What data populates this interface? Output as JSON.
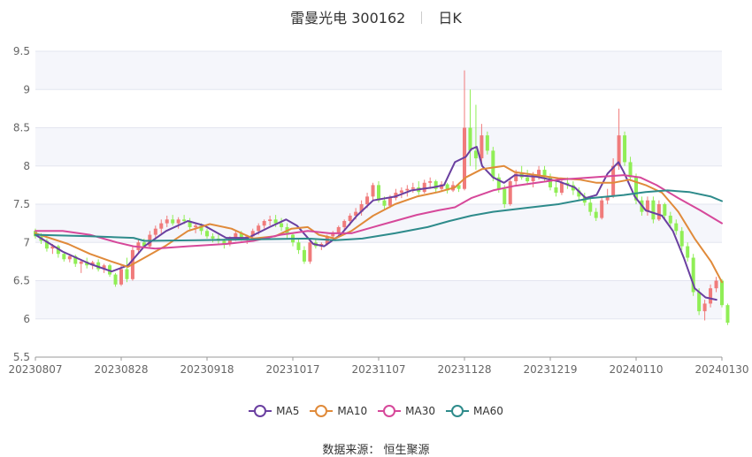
{
  "title": {
    "text": "雷曼光电 300162",
    "period": "日K"
  },
  "source_text": "数据来源： 恒生聚源",
  "colors": {
    "up": "#f07b7b",
    "down": "#90ee56"
  },
  "chart_data": {
    "type": "candlestick",
    "ylim": [
      5.5,
      9.5
    ],
    "yticks": [
      5.5,
      6,
      6.5,
      7,
      7.5,
      8,
      8.5,
      9,
      9.5
    ],
    "ytick_labels": [
      "5.5",
      "6",
      "6.5",
      "7",
      "7.5",
      "8",
      "8.5",
      "9",
      "9.5"
    ],
    "xtick_labels": [
      "20230807",
      "20230828",
      "20230918",
      "20231017",
      "20231107",
      "20231128",
      "20231219",
      "20240110",
      "20240130"
    ],
    "xtick_index": [
      0,
      15,
      30,
      45,
      60,
      75,
      90,
      105,
      120
    ],
    "num_bars": 121,
    "ohlc": [
      [
        7.15,
        7.18,
        7.05,
        7.08
      ],
      [
        7.08,
        7.12,
        6.98,
        7.02
      ],
      [
        7.02,
        7.05,
        6.88,
        6.92
      ],
      [
        6.92,
        6.98,
        6.85,
        6.95
      ],
      [
        6.95,
        6.97,
        6.8,
        6.85
      ],
      [
        6.85,
        6.88,
        6.75,
        6.78
      ],
      [
        6.78,
        6.85,
        6.74,
        6.82
      ],
      [
        6.82,
        6.84,
        6.68,
        6.72
      ],
      [
        6.72,
        6.78,
        6.6,
        6.75
      ],
      [
        6.75,
        6.8,
        6.66,
        6.7
      ],
      [
        6.7,
        6.76,
        6.65,
        6.74
      ],
      [
        6.74,
        6.78,
        6.62,
        6.65
      ],
      [
        6.65,
        6.72,
        6.6,
        6.7
      ],
      [
        6.7,
        6.72,
        6.55,
        6.58
      ],
      [
        6.58,
        6.6,
        6.42,
        6.45
      ],
      [
        6.45,
        6.7,
        6.43,
        6.65
      ],
      [
        6.65,
        6.8,
        6.48,
        6.52
      ],
      [
        6.52,
        6.95,
        6.5,
        6.9
      ],
      [
        6.9,
        7.05,
        6.85,
        7.0
      ],
      [
        7.0,
        7.05,
        6.92,
        6.95
      ],
      [
        6.95,
        7.15,
        6.93,
        7.1
      ],
      [
        7.1,
        7.22,
        7.05,
        7.18
      ],
      [
        7.18,
        7.3,
        7.12,
        7.25
      ],
      [
        7.25,
        7.35,
        7.2,
        7.3
      ],
      [
        7.3,
        7.36,
        7.22,
        7.25
      ],
      [
        7.25,
        7.33,
        7.18,
        7.3
      ],
      [
        7.3,
        7.36,
        7.24,
        7.28
      ],
      [
        7.28,
        7.32,
        7.15,
        7.2
      ],
      [
        7.2,
        7.26,
        7.12,
        7.22
      ],
      [
        7.22,
        7.25,
        7.1,
        7.15
      ],
      [
        7.15,
        7.18,
        7.05,
        7.08
      ],
      [
        7.08,
        7.12,
        7.0,
        7.05
      ],
      [
        7.05,
        7.1,
        6.98,
        7.02
      ],
      [
        7.02,
        7.05,
        6.92,
        6.98
      ],
      [
        6.98,
        7.08,
        6.95,
        7.05
      ],
      [
        7.05,
        7.15,
        7.02,
        7.12
      ],
      [
        7.12,
        7.15,
        7.02,
        7.05
      ],
      [
        7.05,
        7.1,
        6.98,
        7.08
      ],
      [
        7.08,
        7.18,
        7.05,
        7.15
      ],
      [
        7.15,
        7.25,
        7.1,
        7.22
      ],
      [
        7.22,
        7.3,
        7.18,
        7.28
      ],
      [
        7.28,
        7.35,
        7.22,
        7.3
      ],
      [
        7.3,
        7.36,
        7.2,
        7.25
      ],
      [
        7.25,
        7.32,
        7.15,
        7.2
      ],
      [
        7.2,
        7.25,
        7.05,
        7.1
      ],
      [
        7.1,
        7.12,
        6.95,
        7.0
      ],
      [
        7.0,
        7.05,
        6.85,
        6.9
      ],
      [
        6.9,
        6.95,
        6.72,
        6.75
      ],
      [
        6.75,
        7.05,
        6.72,
        7.0
      ],
      [
        7.0,
        7.05,
        6.92,
        6.95
      ],
      [
        6.95,
        7.0,
        6.9,
        6.98
      ],
      [
        6.98,
        7.1,
        6.96,
        7.08
      ],
      [
        7.08,
        7.15,
        7.02,
        7.12
      ],
      [
        7.12,
        7.22,
        7.08,
        7.2
      ],
      [
        7.2,
        7.3,
        7.15,
        7.28
      ],
      [
        7.28,
        7.38,
        7.22,
        7.35
      ],
      [
        7.35,
        7.45,
        7.3,
        7.4
      ],
      [
        7.4,
        7.55,
        7.35,
        7.5
      ],
      [
        7.5,
        7.65,
        7.45,
        7.6
      ],
      [
        7.6,
        7.78,
        7.55,
        7.75
      ],
      [
        7.75,
        7.8,
        7.52,
        7.55
      ],
      [
        7.55,
        7.6,
        7.42,
        7.48
      ],
      [
        7.48,
        7.62,
        7.45,
        7.58
      ],
      [
        7.58,
        7.7,
        7.55,
        7.65
      ],
      [
        7.65,
        7.72,
        7.58,
        7.68
      ],
      [
        7.68,
        7.75,
        7.6,
        7.7
      ],
      [
        7.7,
        7.78,
        7.65,
        7.72
      ],
      [
        7.72,
        7.8,
        7.62,
        7.66
      ],
      [
        7.66,
        7.82,
        7.64,
        7.78
      ],
      [
        7.78,
        7.85,
        7.7,
        7.8
      ],
      [
        7.8,
        7.82,
        7.65,
        7.7
      ],
      [
        7.7,
        7.8,
        7.66,
        7.76
      ],
      [
        7.76,
        7.78,
        7.64,
        7.68
      ],
      [
        7.68,
        7.8,
        7.66,
        7.75
      ],
      [
        7.75,
        7.78,
        7.66,
        7.7
      ],
      [
        7.7,
        9.25,
        7.68,
        8.5
      ],
      [
        8.5,
        9.0,
        8.0,
        8.2
      ],
      [
        8.2,
        8.8,
        7.95,
        8.1
      ],
      [
        8.1,
        8.55,
        8.05,
        8.4
      ],
      [
        8.4,
        8.45,
        8.15,
        8.2
      ],
      [
        8.2,
        8.25,
        7.8,
        7.85
      ],
      [
        7.85,
        7.9,
        7.65,
        7.7
      ],
      [
        7.7,
        7.75,
        7.45,
        7.5
      ],
      [
        7.5,
        7.85,
        7.48,
        7.8
      ],
      [
        7.8,
        7.95,
        7.75,
        7.9
      ],
      [
        7.9,
        8.0,
        7.82,
        7.85
      ],
      [
        7.85,
        7.95,
        7.75,
        7.8
      ],
      [
        7.8,
        7.92,
        7.72,
        7.88
      ],
      [
        7.88,
        8.0,
        7.82,
        7.95
      ],
      [
        7.95,
        8.0,
        7.8,
        7.85
      ],
      [
        7.85,
        7.9,
        7.68,
        7.72
      ],
      [
        7.72,
        7.8,
        7.6,
        7.65
      ],
      [
        7.65,
        7.82,
        7.62,
        7.78
      ],
      [
        7.78,
        7.85,
        7.7,
        7.75
      ],
      [
        7.75,
        7.8,
        7.62,
        7.68
      ],
      [
        7.68,
        7.72,
        7.55,
        7.6
      ],
      [
        7.6,
        7.65,
        7.48,
        7.52
      ],
      [
        7.52,
        7.58,
        7.35,
        7.4
      ],
      [
        7.4,
        7.45,
        7.28,
        7.32
      ],
      [
        7.32,
        7.6,
        7.3,
        7.55
      ],
      [
        7.55,
        7.7,
        7.5,
        7.6
      ],
      [
        7.6,
        8.1,
        7.58,
        8.0
      ],
      [
        8.0,
        8.75,
        7.95,
        8.4
      ],
      [
        8.4,
        8.45,
        8.0,
        8.05
      ],
      [
        8.05,
        8.12,
        7.8,
        7.85
      ],
      [
        7.85,
        7.9,
        7.5,
        7.55
      ],
      [
        7.55,
        7.6,
        7.35,
        7.4
      ],
      [
        7.4,
        7.6,
        7.35,
        7.55
      ],
      [
        7.55,
        7.6,
        7.25,
        7.3
      ],
      [
        7.3,
        7.55,
        7.28,
        7.5
      ],
      [
        7.5,
        7.52,
        7.3,
        7.35
      ],
      [
        7.35,
        7.4,
        7.2,
        7.25
      ],
      [
        7.25,
        7.3,
        7.1,
        7.15
      ],
      [
        7.15,
        7.2,
        6.9,
        6.95
      ],
      [
        6.95,
        7.0,
        6.75,
        6.8
      ],
      [
        6.8,
        6.85,
        6.3,
        6.35
      ],
      [
        6.35,
        6.4,
        6.05,
        6.1
      ],
      [
        6.1,
        6.25,
        5.98,
        6.2
      ],
      [
        6.2,
        6.45,
        6.15,
        6.4
      ],
      [
        6.4,
        6.55,
        6.35,
        6.5
      ],
      [
        6.5,
        6.52,
        6.15,
        6.18
      ],
      [
        6.18,
        6.2,
        5.92,
        5.95
      ]
    ],
    "series": [
      {
        "name": "MA5",
        "color": "#6a3fa0",
        "values": [
          [
            0,
            7.1
          ],
          [
            5,
            6.88
          ],
          [
            10,
            6.72
          ],
          [
            14,
            6.62
          ],
          [
            17,
            6.7
          ],
          [
            20,
            6.95
          ],
          [
            24,
            7.15
          ],
          [
            28,
            7.28
          ],
          [
            31,
            7.22
          ],
          [
            35,
            7.06
          ],
          [
            39,
            7.06
          ],
          [
            43,
            7.2
          ],
          [
            46,
            7.3
          ],
          [
            48,
            7.22
          ],
          [
            51,
            6.98
          ],
          [
            53,
            6.95
          ],
          [
            56,
            7.1
          ],
          [
            59,
            7.35
          ],
          [
            62,
            7.55
          ],
          [
            66,
            7.6
          ],
          [
            69,
            7.68
          ],
          [
            73,
            7.72
          ],
          [
            75,
            7.75
          ],
          [
            77,
            8.05
          ],
          [
            79,
            8.12
          ],
          [
            80,
            8.22
          ],
          [
            81,
            8.25
          ],
          [
            82,
            8.0
          ],
          [
            84,
            7.85
          ],
          [
            86,
            7.78
          ],
          [
            88,
            7.88
          ],
          [
            92,
            7.86
          ],
          [
            96,
            7.8
          ],
          [
            99,
            7.72
          ],
          [
            101,
            7.58
          ],
          [
            103,
            7.62
          ],
          [
            105,
            7.9
          ],
          [
            107,
            8.05
          ],
          [
            108,
            7.92
          ],
          [
            110,
            7.6
          ],
          [
            112,
            7.42
          ],
          [
            115,
            7.35
          ],
          [
            117,
            7.15
          ],
          [
            119,
            6.8
          ],
          [
            121,
            6.4
          ],
          [
            123,
            6.28
          ],
          [
            125,
            6.25
          ]
        ]
      },
      {
        "name": "MA10",
        "color": "#e08a3a",
        "values": [
          [
            0,
            7.12
          ],
          [
            6,
            6.98
          ],
          [
            10,
            6.85
          ],
          [
            14,
            6.75
          ],
          [
            17,
            6.68
          ],
          [
            20,
            6.8
          ],
          [
            24,
            6.96
          ],
          [
            28,
            7.15
          ],
          [
            32,
            7.24
          ],
          [
            36,
            7.18
          ],
          [
            40,
            7.05
          ],
          [
            44,
            7.08
          ],
          [
            47,
            7.18
          ],
          [
            50,
            7.2
          ],
          [
            52,
            7.1
          ],
          [
            55,
            7.05
          ],
          [
            58,
            7.15
          ],
          [
            62,
            7.35
          ],
          [
            66,
            7.5
          ],
          [
            70,
            7.6
          ],
          [
            74,
            7.66
          ],
          [
            77,
            7.72
          ],
          [
            79,
            7.85
          ],
          [
            82,
            7.96
          ],
          [
            86,
            8.0
          ],
          [
            88,
            7.92
          ],
          [
            92,
            7.88
          ],
          [
            96,
            7.84
          ],
          [
            100,
            7.82
          ],
          [
            103,
            7.78
          ],
          [
            106,
            7.78
          ],
          [
            109,
            7.82
          ],
          [
            112,
            7.75
          ],
          [
            115,
            7.65
          ],
          [
            118,
            7.4
          ],
          [
            121,
            7.05
          ],
          [
            124,
            6.75
          ],
          [
            126,
            6.48
          ]
        ]
      },
      {
        "name": "MA30",
        "color": "#d6489a",
        "values": [
          [
            0,
            7.15
          ],
          [
            5,
            7.15
          ],
          [
            10,
            7.1
          ],
          [
            15,
            7.0
          ],
          [
            18,
            6.95
          ],
          [
            22,
            6.92
          ],
          [
            28,
            6.95
          ],
          [
            35,
            6.98
          ],
          [
            40,
            7.02
          ],
          [
            45,
            7.1
          ],
          [
            50,
            7.15
          ],
          [
            54,
            7.12
          ],
          [
            58,
            7.12
          ],
          [
            62,
            7.2
          ],
          [
            66,
            7.28
          ],
          [
            70,
            7.36
          ],
          [
            74,
            7.42
          ],
          [
            77,
            7.46
          ],
          [
            80,
            7.58
          ],
          [
            84,
            7.68
          ],
          [
            88,
            7.74
          ],
          [
            92,
            7.78
          ],
          [
            96,
            7.82
          ],
          [
            100,
            7.84
          ],
          [
            104,
            7.86
          ],
          [
            108,
            7.88
          ],
          [
            111,
            7.85
          ],
          [
            114,
            7.75
          ],
          [
            118,
            7.58
          ],
          [
            122,
            7.42
          ],
          [
            126,
            7.25
          ]
        ]
      },
      {
        "name": "MA60",
        "color": "#2e8b8b",
        "values": [
          [
            0,
            7.1
          ],
          [
            10,
            7.08
          ],
          [
            18,
            7.06
          ],
          [
            20,
            7.02
          ],
          [
            30,
            7.03
          ],
          [
            40,
            7.04
          ],
          [
            50,
            7.05
          ],
          [
            55,
            7.03
          ],
          [
            60,
            7.05
          ],
          [
            66,
            7.12
          ],
          [
            72,
            7.2
          ],
          [
            76,
            7.28
          ],
          [
            80,
            7.35
          ],
          [
            84,
            7.4
          ],
          [
            90,
            7.45
          ],
          [
            96,
            7.5
          ],
          [
            102,
            7.58
          ],
          [
            108,
            7.62
          ],
          [
            112,
            7.66
          ],
          [
            116,
            7.68
          ],
          [
            120,
            7.66
          ],
          [
            124,
            7.6
          ],
          [
            126,
            7.54
          ]
        ]
      }
    ]
  }
}
